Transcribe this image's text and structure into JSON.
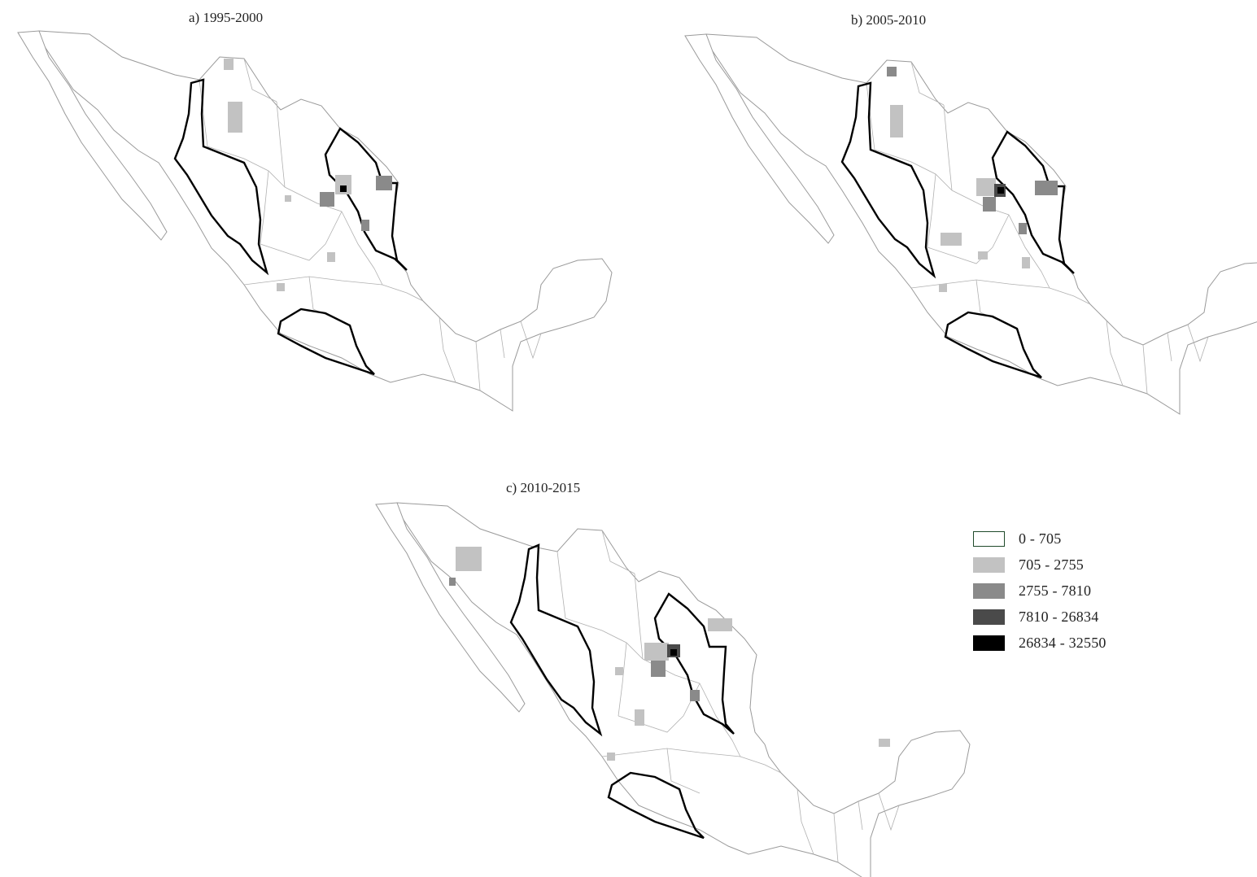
{
  "panels": [
    {
      "id": "a",
      "title": "a) 1995-2000"
    },
    {
      "id": "b",
      "title": "b) 2005-2010"
    },
    {
      "id": "c",
      "title": "c) 2010-2015"
    }
  ],
  "legend": {
    "items": [
      {
        "label": "0 - 705",
        "color": "#ffffff",
        "border": "#1f4a2a"
      },
      {
        "label": "705 - 2755",
        "color": "#c2c2c2"
      },
      {
        "label": "2755 - 7810",
        "color": "#8a8a8a"
      },
      {
        "label": "7810 - 26834",
        "color": "#4a4a4a"
      },
      {
        "label": "26834 - 32550",
        "color": "#000000"
      }
    ]
  },
  "colors": {
    "outline": "#9a9a9a",
    "highlight_border": "#000000"
  }
}
